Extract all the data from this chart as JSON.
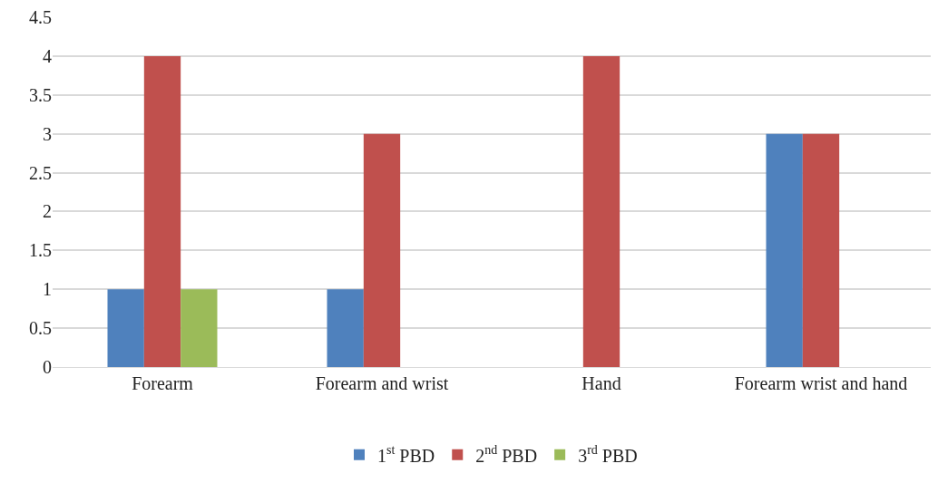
{
  "chart_data": {
    "type": "bar",
    "categories": [
      "Forearm",
      "Forearm and wrist",
      "Hand",
      "Forearm wrist and hand"
    ],
    "series": [
      {
        "name": "1$^{st}$ PBD",
        "color": "#4f81bd",
        "values": [
          1,
          1,
          0,
          3
        ]
      },
      {
        "name": "2$^{nd}$ PBD",
        "color": "#c0504d",
        "values": [
          4,
          3,
          4,
          3
        ]
      },
      {
        "name": "3$^{rd}$ PBD",
        "color": "#9bbb59",
        "values": [
          1,
          0,
          0,
          0
        ]
      }
    ],
    "ylim": [
      0,
      4.5
    ],
    "yticks": [
      0,
      0.5,
      1,
      1.5,
      2,
      2.5,
      3,
      3.5,
      4,
      4.5
    ],
    "grid": "y",
    "legend": "bottom"
  }
}
